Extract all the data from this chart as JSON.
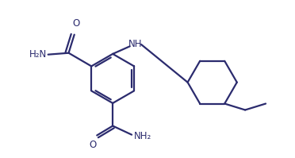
{
  "bg_color": "#ffffff",
  "line_color": "#2b2b6e",
  "line_width": 1.6,
  "font_size": 8.5,
  "figsize": [
    3.72,
    1.99
  ],
  "dpi": 100,
  "xlim": [
    0,
    9.3
  ],
  "ylim": [
    0,
    4.97
  ]
}
